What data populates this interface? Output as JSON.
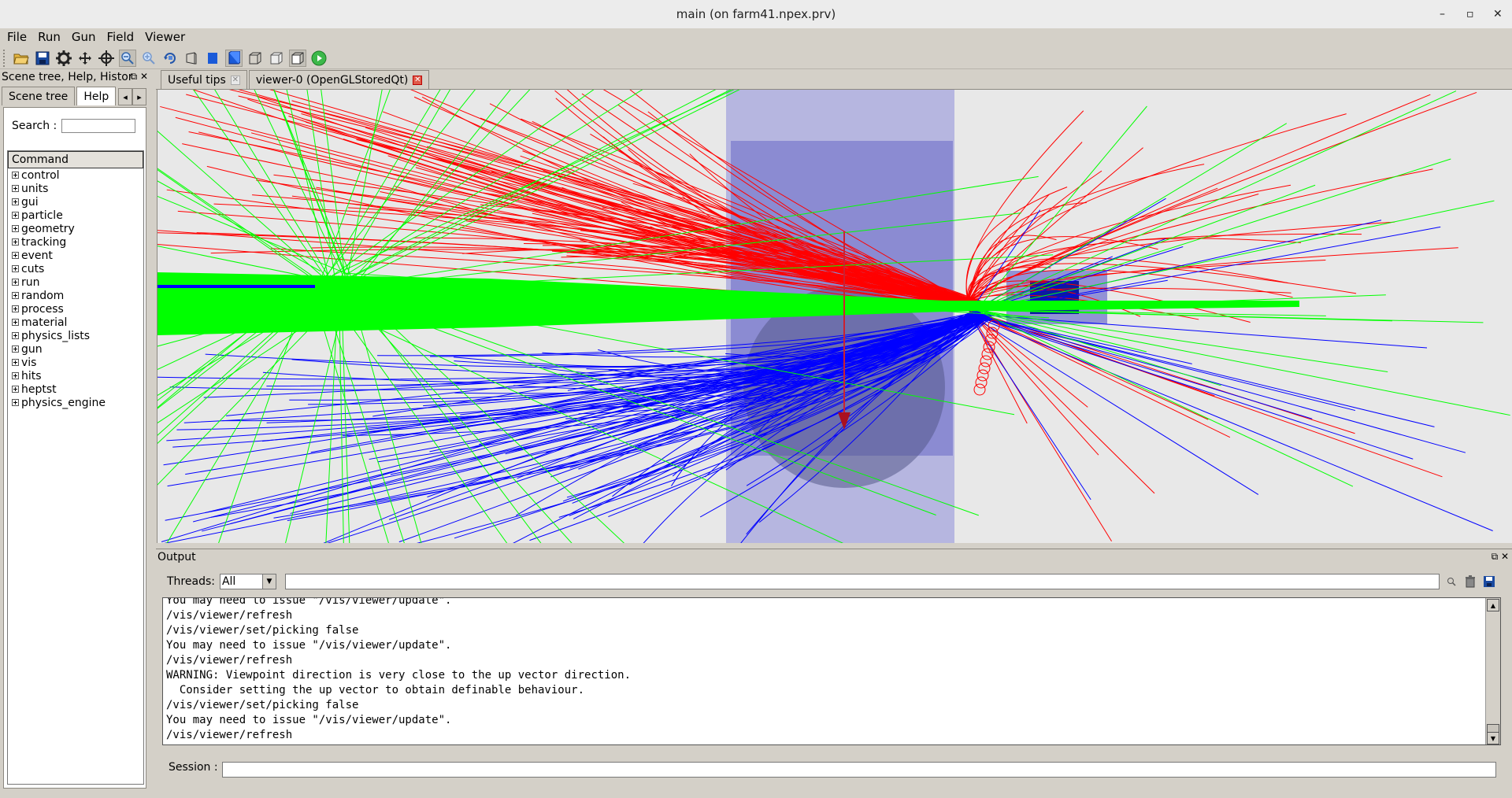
{
  "window": {
    "title": "main (on farm41.npex.prv)",
    "controls": [
      "–",
      "▫",
      "✕"
    ]
  },
  "menubar": {
    "items": [
      "File",
      "Run",
      "Gun",
      "Field",
      "Viewer"
    ]
  },
  "toolbar": {
    "icons": [
      "open-folder-icon",
      "save-icon",
      "gear-icon",
      "move-icon",
      "target-icon",
      "zoom-out-icon",
      "zoom-in-icon",
      "rotate-icon",
      "perspective-icon",
      "solid-icon",
      "surface-icon",
      "wireframe-icon",
      "hidden-line-icon",
      "hidden-surface-icon",
      "run-icon"
    ]
  },
  "leftdock": {
    "title": "Scene tree, Help, Histor",
    "tabs": [
      "Scene tree",
      "Help"
    ],
    "search_label": "Search :",
    "search_value": "",
    "tree_header": "Command",
    "commands": [
      "control",
      "units",
      "gui",
      "particle",
      "geometry",
      "tracking",
      "event",
      "cuts",
      "run",
      "random",
      "process",
      "material",
      "physics_lists",
      "gun",
      "vis",
      "hits",
      "heptst",
      "physics_engine"
    ]
  },
  "maintabs": {
    "tabs": [
      "Useful tips",
      "viewer-0 (OpenGLStoredQt)"
    ],
    "selected": "viewer-0 (OpenGLStoredQt)"
  },
  "viewer": {
    "colors": {
      "background": "#e8e8e8",
      "volume": "#8c8cd8",
      "positive_track": "#ff0000",
      "negative_track": "#0000ff",
      "neutral_track": "#00ff00"
    }
  },
  "output": {
    "title": "Output",
    "threads_label": "Threads:",
    "threads_value": "All",
    "filter_value": "",
    "log_lines": [
      "You may need to issue \"/vis/viewer/update\".",
      "/vis/viewer/refresh",
      "/vis/viewer/set/picking false",
      "You may need to issue \"/vis/viewer/update\".",
      "/vis/viewer/refresh",
      "WARNING: Viewpoint direction is very close to the up vector direction.",
      "  Consider setting the up vector to obtain definable behaviour.",
      "/vis/viewer/set/picking false",
      "You may need to issue \"/vis/viewer/update\".",
      "/vis/viewer/refresh"
    ],
    "session_label": "Session :",
    "session_value": ""
  }
}
